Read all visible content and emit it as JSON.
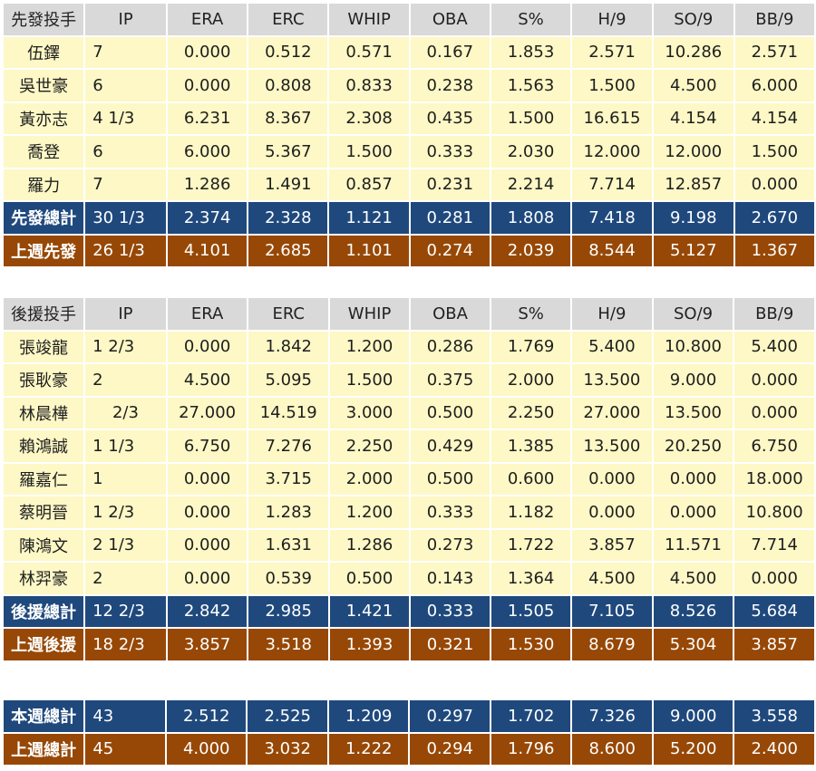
{
  "columns": [
    "IP",
    "ERA",
    "ERC",
    "WHIP",
    "OBA",
    "S%",
    "H/9",
    "SO/9",
    "BB/9"
  ],
  "starters": {
    "header": "先發投手",
    "rows": [
      {
        "name": "伍鐸",
        "ip": "7",
        "vals": [
          "0.000",
          "0.512",
          "0.571",
          "0.167",
          "1.853",
          "2.571",
          "10.286",
          "2.571"
        ]
      },
      {
        "name": "吳世豪",
        "ip": "6",
        "vals": [
          "0.000",
          "0.808",
          "0.833",
          "0.238",
          "1.563",
          "1.500",
          "4.500",
          "6.000"
        ]
      },
      {
        "name": "黃亦志",
        "ip": "4 1/3",
        "vals": [
          "6.231",
          "8.367",
          "2.308",
          "0.435",
          "1.500",
          "16.615",
          "4.154",
          "4.154"
        ]
      },
      {
        "name": "喬登",
        "ip": "6",
        "vals": [
          "6.000",
          "5.367",
          "1.500",
          "0.333",
          "2.030",
          "12.000",
          "12.000",
          "1.500"
        ]
      },
      {
        "name": "羅力",
        "ip": "7",
        "vals": [
          "1.286",
          "1.491",
          "0.857",
          "0.231",
          "2.214",
          "7.714",
          "12.857",
          "0.000"
        ]
      }
    ],
    "total": {
      "name": "先發總計",
      "ip": "30 1/3",
      "vals": [
        "2.374",
        "2.328",
        "1.121",
        "0.281",
        "1.808",
        "7.418",
        "9.198",
        "2.670"
      ]
    },
    "last_week": {
      "name": "上週先發",
      "ip": "26 1/3",
      "vals": [
        "4.101",
        "2.685",
        "1.101",
        "0.274",
        "2.039",
        "8.544",
        "5.127",
        "1.367"
      ]
    }
  },
  "relievers": {
    "header": "後援投手",
    "rows": [
      {
        "name": "張竣龍",
        "ip": "1 2/3",
        "vals": [
          "0.000",
          "1.842",
          "1.200",
          "0.286",
          "1.769",
          "5.400",
          "10.800",
          "5.400"
        ]
      },
      {
        "name": "張耿豪",
        "ip": "2",
        "vals": [
          "4.500",
          "5.095",
          "1.500",
          "0.375",
          "2.000",
          "13.500",
          "9.000",
          "0.000"
        ]
      },
      {
        "name": "林晨樺",
        "ip": "2/3",
        "vals": [
          "27.000",
          "14.519",
          "3.000",
          "0.500",
          "2.250",
          "27.000",
          "13.500",
          "0.000"
        ]
      },
      {
        "name": "賴鴻誠",
        "ip": "1 1/3",
        "vals": [
          "6.750",
          "7.276",
          "2.250",
          "0.429",
          "1.385",
          "13.500",
          "20.250",
          "6.750"
        ]
      },
      {
        "name": "羅嘉仁",
        "ip": "1",
        "vals": [
          "0.000",
          "3.715",
          "2.000",
          "0.500",
          "0.600",
          "0.000",
          "0.000",
          "18.000"
        ]
      },
      {
        "name": "蔡明晉",
        "ip": "1 2/3",
        "vals": [
          "0.000",
          "1.283",
          "1.200",
          "0.333",
          "1.182",
          "0.000",
          "0.000",
          "10.800"
        ]
      },
      {
        "name": "陳鴻文",
        "ip": "2 1/3",
        "vals": [
          "0.000",
          "1.631",
          "1.286",
          "0.273",
          "1.722",
          "3.857",
          "11.571",
          "7.714"
        ]
      },
      {
        "name": "林羿豪",
        "ip": "2",
        "vals": [
          "0.000",
          "0.539",
          "0.500",
          "0.143",
          "1.364",
          "4.500",
          "4.500",
          "0.000"
        ]
      }
    ],
    "total": {
      "name": "後援總計",
      "ip": "12 2/3",
      "vals": [
        "2.842",
        "2.985",
        "1.421",
        "0.333",
        "1.505",
        "7.105",
        "8.526",
        "5.684"
      ]
    },
    "last_week": {
      "name": "上週後援",
      "ip": "18 2/3",
      "vals": [
        "3.857",
        "3.518",
        "1.393",
        "0.321",
        "1.530",
        "8.679",
        "5.304",
        "3.857"
      ]
    }
  },
  "weekly": {
    "total": {
      "name": "本週總計",
      "ip": "43",
      "vals": [
        "2.512",
        "2.525",
        "1.209",
        "0.297",
        "1.702",
        "7.326",
        "9.000",
        "3.558"
      ]
    },
    "last_week": {
      "name": "上週總計",
      "ip": "45",
      "vals": [
        "4.000",
        "3.032",
        "1.222",
        "0.294",
        "1.796",
        "8.600",
        "5.200",
        "2.400"
      ]
    }
  }
}
